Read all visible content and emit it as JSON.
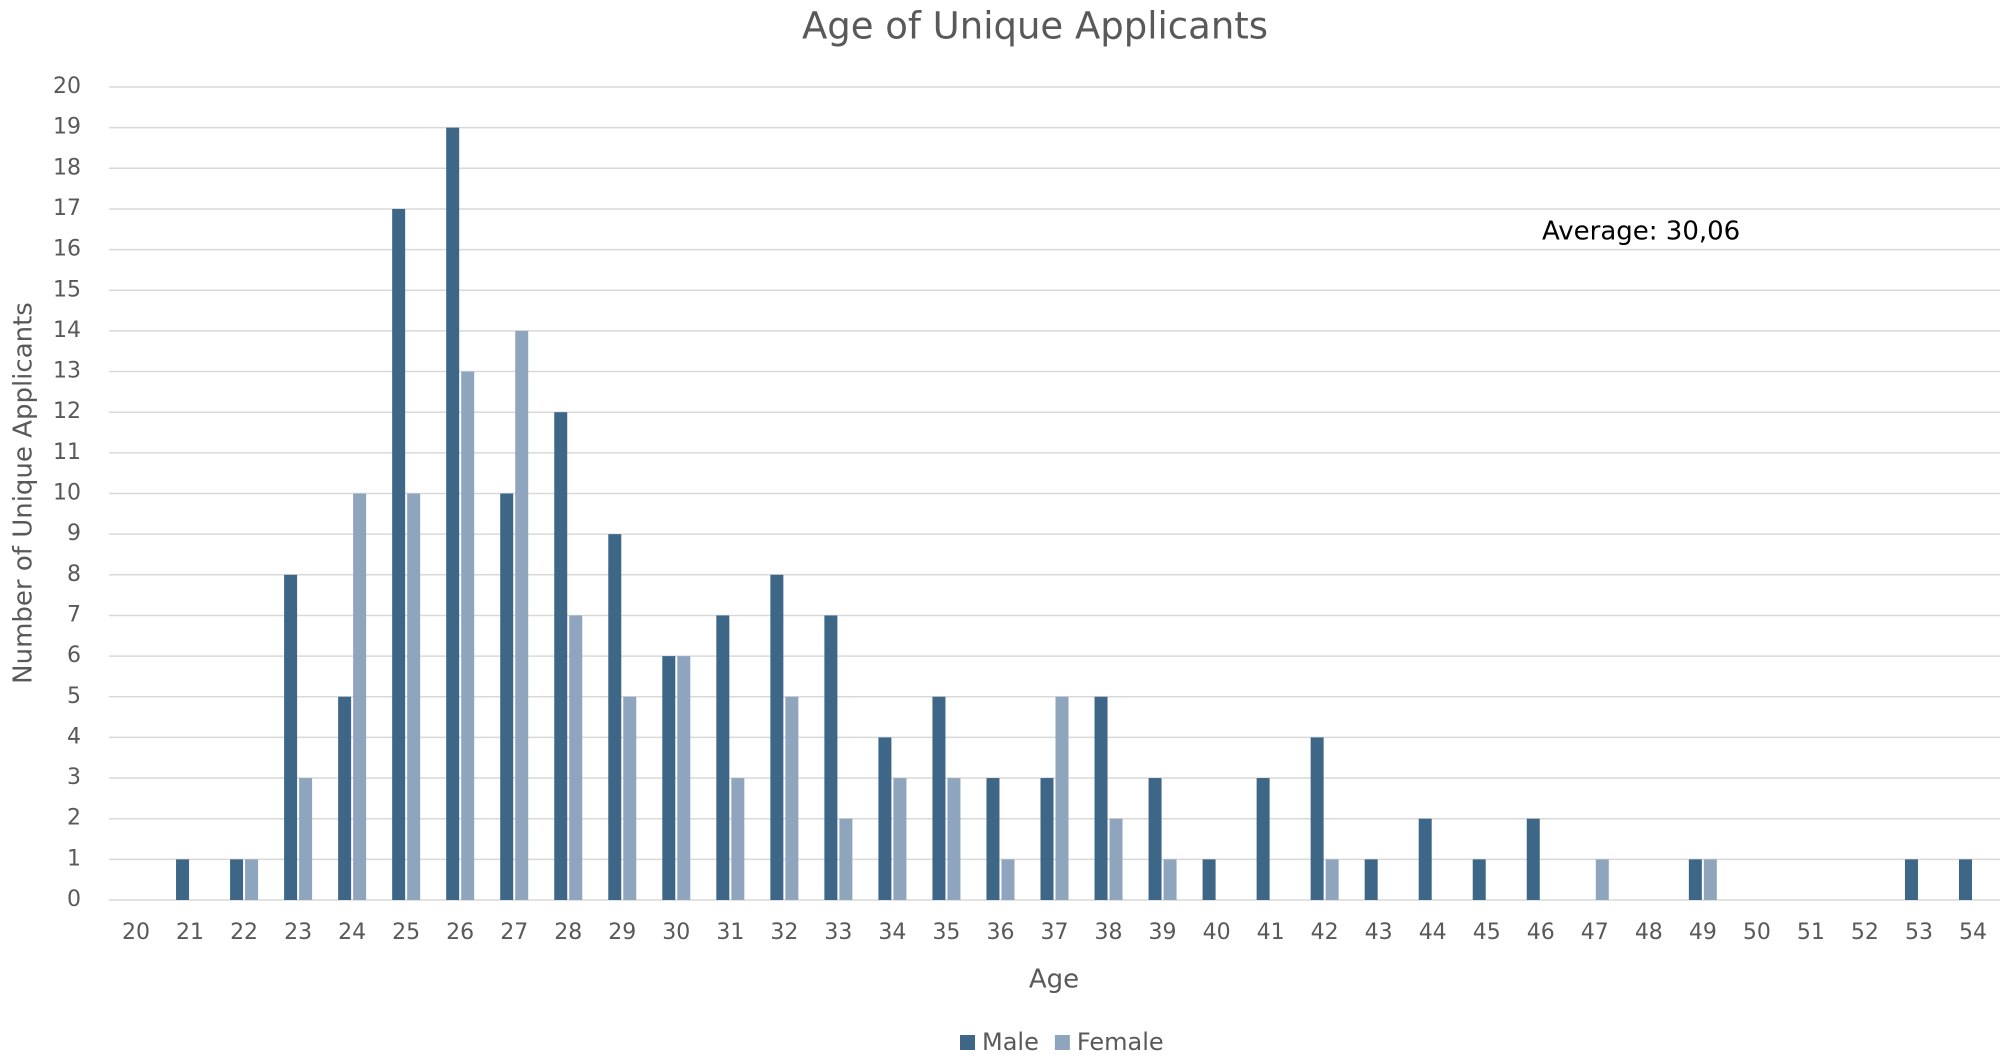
{
  "chart_data": {
    "type": "bar",
    "title": "Age of Unique Applicants",
    "xlabel": "Age",
    "ylabel": "Number of Unique Applicants",
    "annotation": "Average: 30,06",
    "categories": [
      20,
      21,
      22,
      23,
      24,
      25,
      26,
      27,
      28,
      29,
      30,
      31,
      32,
      33,
      34,
      35,
      36,
      37,
      38,
      39,
      40,
      41,
      42,
      43,
      44,
      45,
      46,
      47,
      48,
      49,
      50,
      51,
      52,
      53,
      54
    ],
    "series": [
      {
        "name": "Male",
        "color": "#3e6687",
        "values": [
          0,
          1,
          1,
          8,
          5,
          17,
          19,
          10,
          12,
          9,
          6,
          7,
          8,
          7,
          4,
          5,
          3,
          3,
          5,
          3,
          1,
          3,
          4,
          1,
          2,
          1,
          2,
          0,
          0,
          1,
          0,
          0,
          0,
          1,
          1
        ]
      },
      {
        "name": "Female",
        "color": "#8fa5bd",
        "values": [
          0,
          0,
          1,
          3,
          10,
          10,
          13,
          14,
          7,
          5,
          6,
          3,
          5,
          2,
          3,
          3,
          1,
          5,
          2,
          1,
          0,
          0,
          1,
          0,
          0,
          0,
          0,
          1,
          0,
          1,
          0,
          0,
          0,
          0,
          0
        ]
      }
    ],
    "ylim": [
      0,
      20
    ],
    "yticks": [
      0,
      1,
      2,
      3,
      4,
      5,
      6,
      7,
      8,
      9,
      10,
      11,
      12,
      13,
      14,
      15,
      16,
      17,
      18,
      19,
      20
    ],
    "grid": true,
    "legend": "bottom"
  }
}
